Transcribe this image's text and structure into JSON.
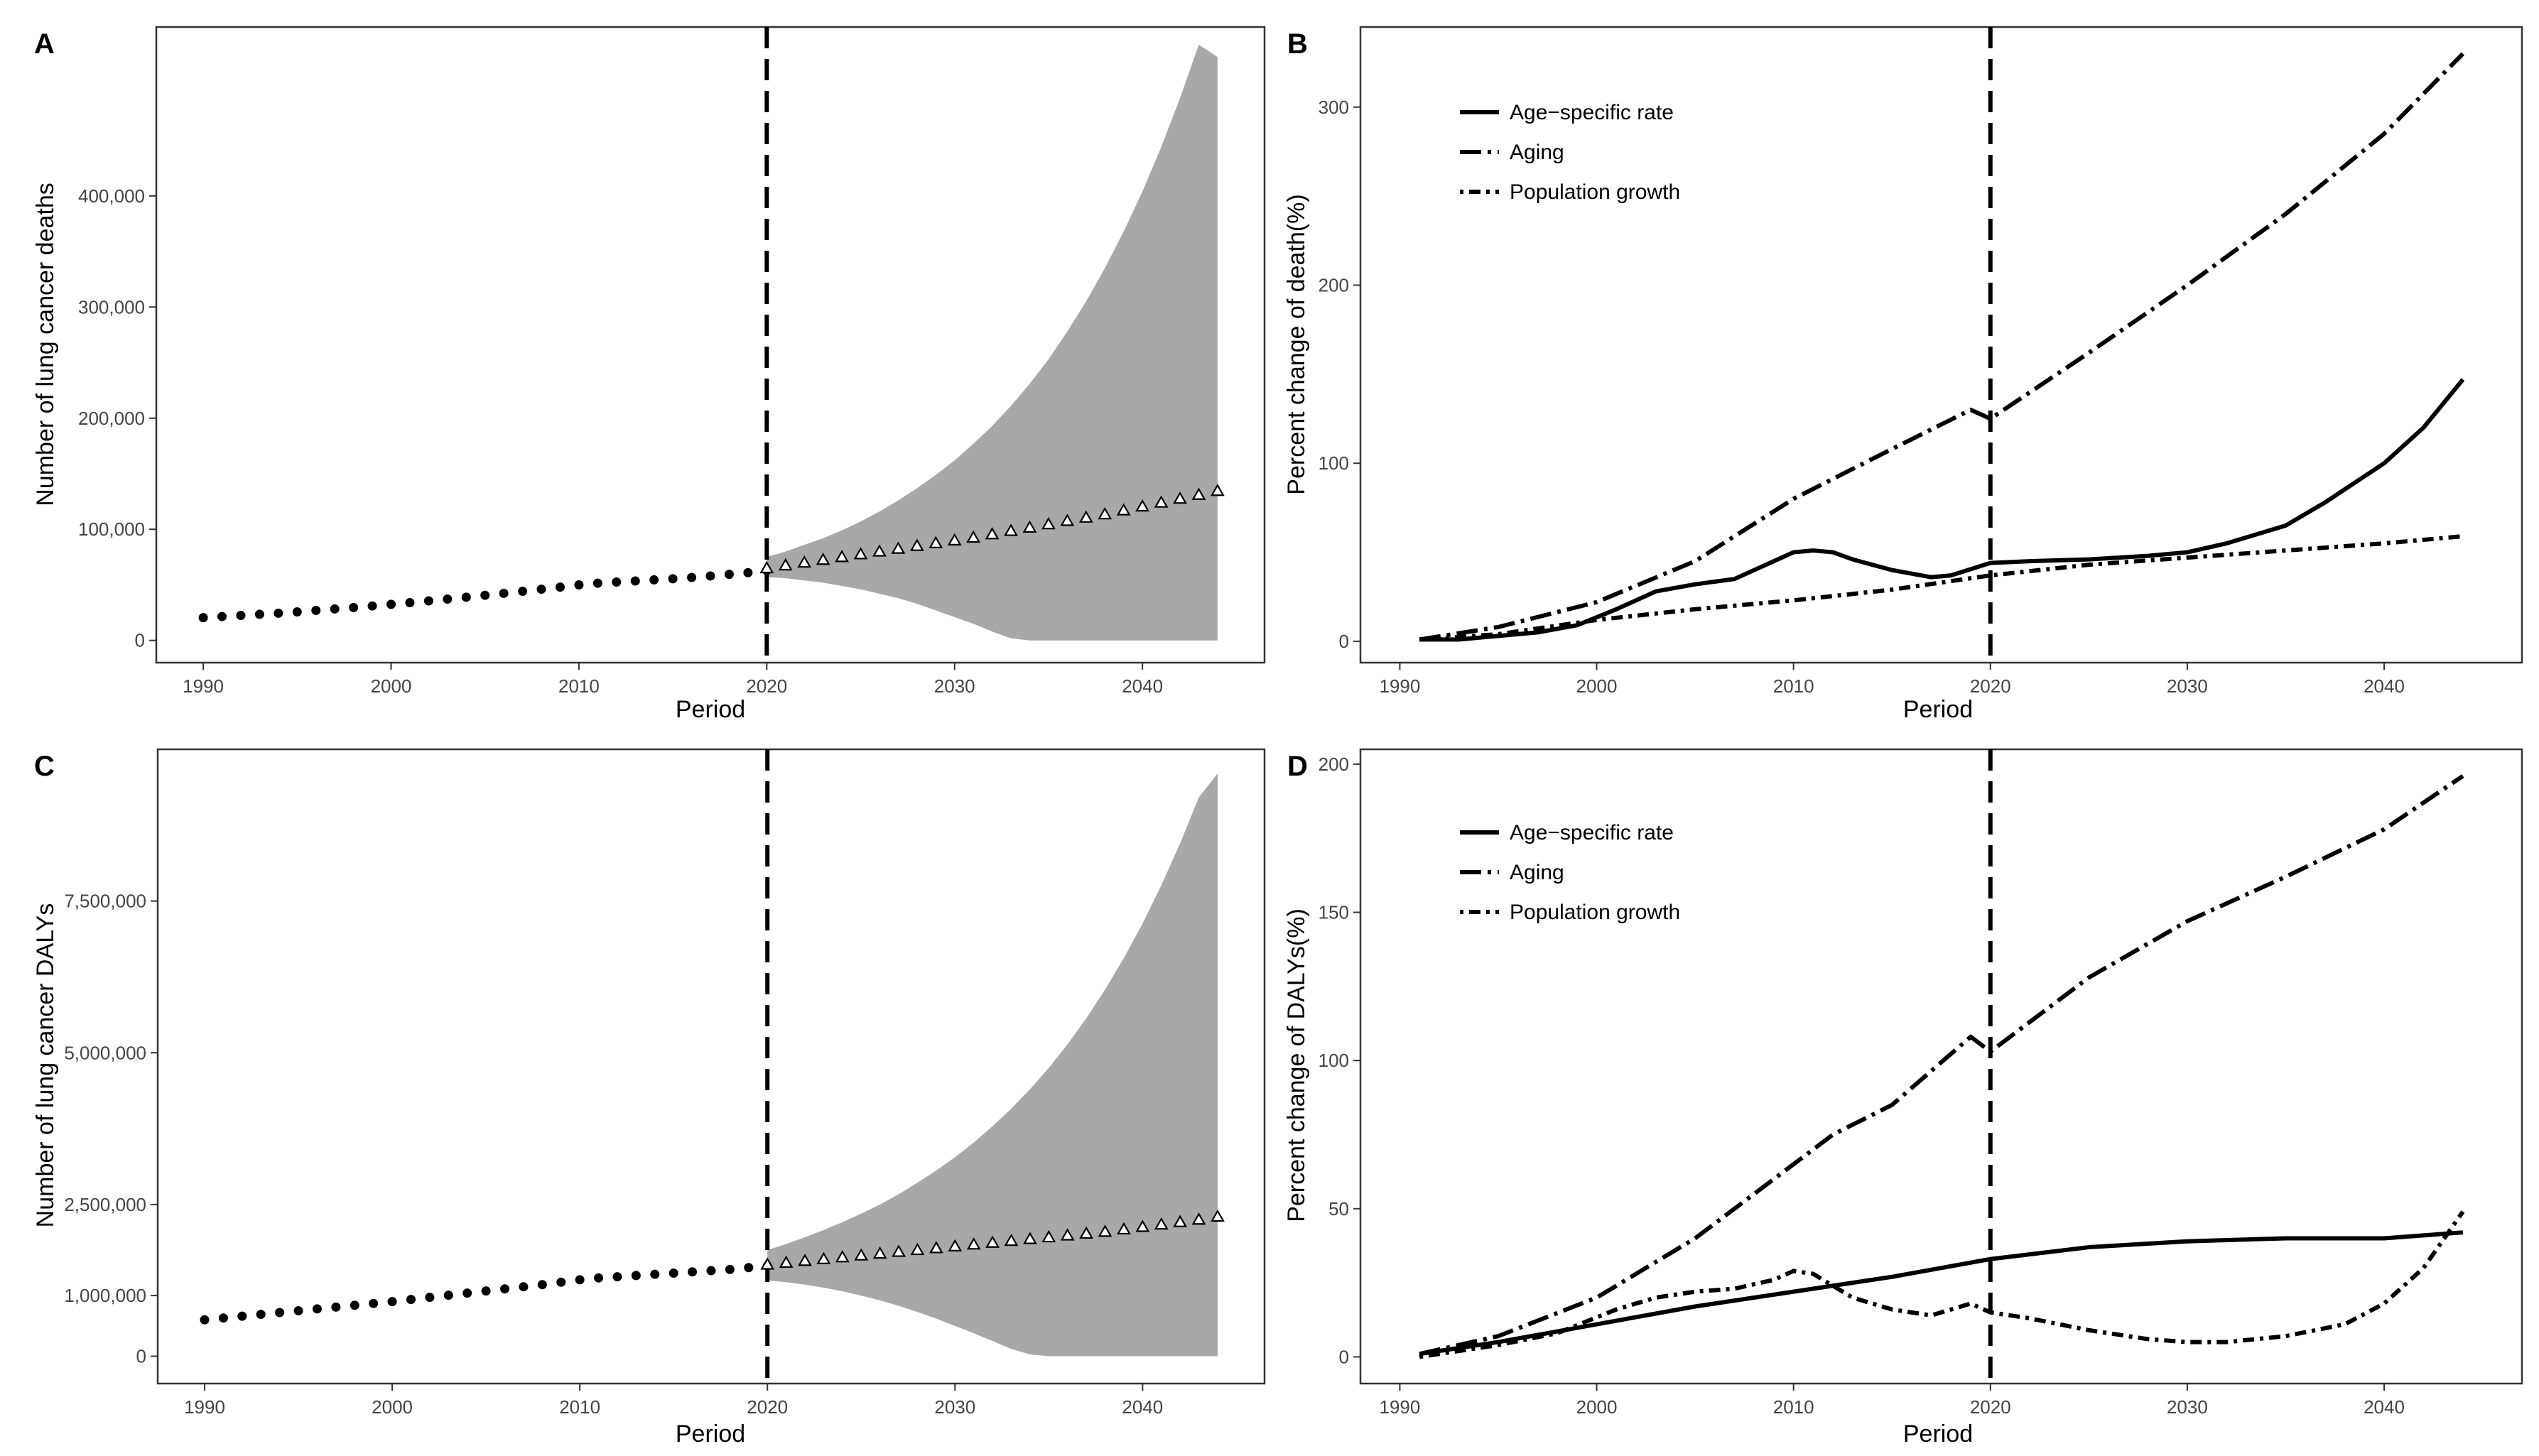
{
  "chart_data": [
    {
      "panel": "A",
      "type": "line",
      "xlabel": "Period",
      "ylabel": "Number of lung cancer deaths",
      "xlim": [
        1987.5,
        2046.5
      ],
      "ylim": [
        -20000,
        552000
      ],
      "x_ticks": [
        1990,
        2000,
        2010,
        2020,
        2030,
        2040
      ],
      "x_tick_labels": [
        "1990",
        "2000",
        "2010",
        "2020",
        "2030",
        "2040"
      ],
      "y_ticks": [
        0,
        100000,
        200000,
        300000,
        400000
      ],
      "y_tick_labels": [
        "0",
        "100,000",
        "200,000",
        "300,000",
        "400,000"
      ],
      "vline": 2020,
      "observed": {
        "x": [
          1990,
          1991,
          1992,
          1993,
          1994,
          1995,
          1996,
          1997,
          1998,
          1999,
          2000,
          2001,
          2002,
          2003,
          2004,
          2005,
          2006,
          2007,
          2008,
          2009,
          2010,
          2011,
          2012,
          2013,
          2014,
          2015,
          2016,
          2017,
          2018,
          2019,
          2020
        ],
        "y": [
          20500,
          21500,
          22500,
          23500,
          24500,
          25700,
          27000,
          28300,
          29600,
          31000,
          32500,
          34000,
          35600,
          37200,
          38900,
          40600,
          42400,
          44200,
          46100,
          48000,
          50000,
          51500,
          52500,
          53500,
          54500,
          55500,
          56700,
          58000,
          59500,
          61000,
          63000
        ]
      },
      "predicted": {
        "x": [
          2020,
          2021,
          2022,
          2023,
          2024,
          2025,
          2026,
          2027,
          2028,
          2029,
          2030,
          2031,
          2032,
          2033,
          2034,
          2035,
          2036,
          2037,
          2038,
          2039,
          2040,
          2041,
          2042,
          2043,
          2044
        ],
        "y": [
          65000,
          67500,
          70000,
          72500,
          75000,
          77500,
          80000,
          82500,
          85000,
          87500,
          90000,
          92500,
          95500,
          98500,
          101500,
          104500,
          107500,
          110500,
          113500,
          117000,
          120500,
          124000,
          127500,
          131000,
          134500
        ]
      },
      "interval": {
        "x": [
          2020,
          2021,
          2022,
          2023,
          2024,
          2025,
          2026,
          2027,
          2028,
          2029,
          2030,
          2031,
          2032,
          2033,
          2034,
          2035,
          2036,
          2037,
          2038,
          2039,
          2040,
          2041,
          2042,
          2043,
          2044
        ],
        "upper": [
          75000,
          80000,
          86000,
          92000,
          99000,
          107000,
          116000,
          126000,
          137000,
          149000,
          162000,
          177000,
          193000,
          211000,
          231000,
          253000,
          278000,
          305000,
          335000,
          368000,
          404000,
          444000,
          488000,
          536000,
          525000
        ],
        "lower": [
          57000,
          56000,
          54000,
          52000,
          49000,
          46000,
          42000,
          38000,
          33000,
          27000,
          21000,
          15000,
          8000,
          2000,
          0,
          0,
          0,
          0,
          0,
          0,
          0,
          0,
          0,
          0,
          0
        ]
      }
    },
    {
      "panel": "B",
      "type": "line",
      "xlabel": "Period",
      "ylabel": "Percent change of death(%)",
      "xlim": [
        1988,
        2047
      ],
      "ylim": [
        -12,
        345
      ],
      "x_ticks": [
        1990,
        2000,
        2010,
        2020,
        2030,
        2040
      ],
      "x_tick_labels": [
        "1990",
        "2000",
        "2010",
        "2020",
        "2030",
        "2040"
      ],
      "y_ticks": [
        0,
        100,
        200,
        300
      ],
      "y_tick_labels": [
        "0",
        "100",
        "200",
        "300"
      ],
      "vline": 2020,
      "legend": [
        "Age−specific rate",
        "Aging",
        "Population growth"
      ],
      "series": [
        {
          "name": "Age−specific rate",
          "x": [
            1991,
            1993,
            1995,
            1997,
            1999,
            2001,
            2003,
            2005,
            2007,
            2009,
            2010,
            2011,
            2012,
            2013,
            2015,
            2017,
            2018,
            2020,
            2022,
            2025,
            2028,
            2030,
            2032,
            2035,
            2037,
            2040,
            2042,
            2044
          ],
          "y": [
            1,
            1,
            3,
            5,
            9,
            18,
            28,
            32,
            35,
            45,
            50,
            51,
            50,
            46,
            40,
            36,
            37,
            44,
            45,
            46,
            48,
            50,
            55,
            65,
            78,
            100,
            120,
            147
          ]
        },
        {
          "name": "Aging",
          "x": [
            1991,
            1995,
            2000,
            2005,
            2010,
            2015,
            2019,
            2020,
            2025,
            2030,
            2035,
            2040,
            2044
          ],
          "y": [
            1,
            8,
            22,
            45,
            80,
            108,
            130,
            125,
            162,
            200,
            240,
            285,
            330
          ]
        },
        {
          "name": "Population growth",
          "x": [
            1991,
            1995,
            2000,
            2005,
            2010,
            2015,
            2020,
            2025,
            2030,
            2035,
            2040,
            2044
          ],
          "y": [
            1,
            4,
            12,
            18,
            23,
            29,
            37,
            43,
            47,
            51,
            55,
            59
          ]
        }
      ]
    },
    {
      "panel": "C",
      "type": "line",
      "xlabel": "Period",
      "ylabel": "Number of lung cancer DALYs",
      "xlim": [
        1987.5,
        2046.5
      ],
      "ylim": [
        -450000,
        10000000
      ],
      "x_ticks": [
        1990,
        2000,
        2010,
        2020,
        2030,
        2040
      ],
      "x_tick_labels": [
        "1990",
        "2000",
        "2010",
        "2020",
        "2030",
        "2040"
      ],
      "y_ticks": [
        0,
        1000000,
        2500000,
        5000000,
        7500000
      ],
      "y_tick_labels": [
        "0",
        "1,000,000",
        "2,500,000",
        "5,000,000",
        "7,500,000"
      ],
      "vline": 2020,
      "observed": {
        "x": [
          1990,
          1991,
          1992,
          1993,
          1994,
          1995,
          1996,
          1997,
          1998,
          1999,
          2000,
          2001,
          2002,
          2003,
          2004,
          2005,
          2006,
          2007,
          2008,
          2009,
          2010,
          2011,
          2012,
          2013,
          2014,
          2015,
          2016,
          2017,
          2018,
          2019,
          2020
        ],
        "y": [
          600000,
          630000,
          660000,
          690000,
          720000,
          750000,
          780000,
          810000,
          840000,
          870000,
          900000,
          935000,
          970000,
          1005000,
          1040000,
          1075000,
          1110000,
          1145000,
          1180000,
          1220000,
          1260000,
          1290000,
          1310000,
          1330000,
          1350000,
          1370000,
          1390000,
          1410000,
          1430000,
          1460000,
          1490000
        ]
      },
      "predicted": {
        "x": [
          2020,
          2021,
          2022,
          2023,
          2024,
          2025,
          2026,
          2027,
          2028,
          2029,
          2030,
          2031,
          2032,
          2033,
          2034,
          2035,
          2036,
          2037,
          2038,
          2039,
          2040,
          2041,
          2042,
          2043,
          2044
        ],
        "y": [
          1510000,
          1540000,
          1570000,
          1600000,
          1630000,
          1660000,
          1690000,
          1720000,
          1750000,
          1780000,
          1810000,
          1840000,
          1870000,
          1900000,
          1930000,
          1960000,
          1990000,
          2020000,
          2050000,
          2090000,
          2130000,
          2170000,
          2210000,
          2250000,
          2300000
        ]
      },
      "interval": {
        "x": [
          2020,
          2021,
          2022,
          2023,
          2024,
          2025,
          2026,
          2027,
          2028,
          2029,
          2030,
          2031,
          2032,
          2033,
          2034,
          2035,
          2036,
          2037,
          2038,
          2039,
          2040,
          2041,
          2042,
          2043,
          2044
        ],
        "upper": [
          1750000,
          1850000,
          1960000,
          2080000,
          2210000,
          2350000,
          2500000,
          2670000,
          2860000,
          3060000,
          3280000,
          3520000,
          3790000,
          4080000,
          4400000,
          4750000,
          5140000,
          5570000,
          6040000,
          6560000,
          7130000,
          7760000,
          8450000,
          9210000,
          9600000
        ],
        "lower": [
          1250000,
          1220000,
          1180000,
          1130000,
          1070000,
          1000000,
          920000,
          830000,
          730000,
          620000,
          500000,
          380000,
          250000,
          120000,
          30000,
          0,
          0,
          0,
          0,
          0,
          0,
          0,
          0,
          0,
          0
        ]
      }
    },
    {
      "panel": "D",
      "type": "line",
      "xlabel": "Period",
      "ylabel": "Percent change of DALYs(%)",
      "xlim": [
        1988,
        2047
      ],
      "ylim": [
        -9,
        205
      ],
      "x_ticks": [
        1990,
        2000,
        2010,
        2020,
        2030,
        2040
      ],
      "x_tick_labels": [
        "1990",
        "2000",
        "2010",
        "2020",
        "2030",
        "2040"
      ],
      "y_ticks": [
        0,
        50,
        100,
        150,
        200
      ],
      "y_tick_labels": [
        "0",
        "50",
        "100",
        "150",
        "200"
      ],
      "vline": 2020,
      "legend": [
        "Age−specific rate",
        "Aging",
        "Population growth"
      ],
      "series": [
        {
          "name": "Age−specific rate",
          "x": [
            1991,
            1995,
            2000,
            2005,
            2010,
            2015,
            2020,
            2025,
            2030,
            2035,
            2040,
            2044
          ],
          "y": [
            1,
            5,
            11,
            17,
            22,
            27,
            33,
            37,
            39,
            40,
            40,
            42
          ]
        },
        {
          "name": "Aging",
          "x": [
            1991,
            1995,
            2000,
            2005,
            2010,
            2012,
            2015,
            2019,
            2020,
            2025,
            2030,
            2035,
            2040,
            2044
          ],
          "y": [
            1,
            7,
            20,
            40,
            65,
            75,
            85,
            108,
            103,
            128,
            147,
            162,
            178,
            196
          ]
        },
        {
          "name": "Population growth",
          "x": [
            1991,
            1995,
            1998,
            2001,
            2003,
            2005,
            2007,
            2009,
            2010,
            2011,
            2013,
            2015,
            2017,
            2019,
            2020,
            2022,
            2025,
            2028,
            2030,
            2032,
            2035,
            2038,
            2040,
            2042,
            2044
          ],
          "y": [
            0,
            4,
            8,
            16,
            20,
            22,
            23,
            26,
            29,
            28,
            20,
            16,
            14,
            18,
            15,
            13,
            9,
            6,
            5,
            5,
            7,
            11,
            18,
            30,
            49
          ]
        }
      ]
    }
  ]
}
